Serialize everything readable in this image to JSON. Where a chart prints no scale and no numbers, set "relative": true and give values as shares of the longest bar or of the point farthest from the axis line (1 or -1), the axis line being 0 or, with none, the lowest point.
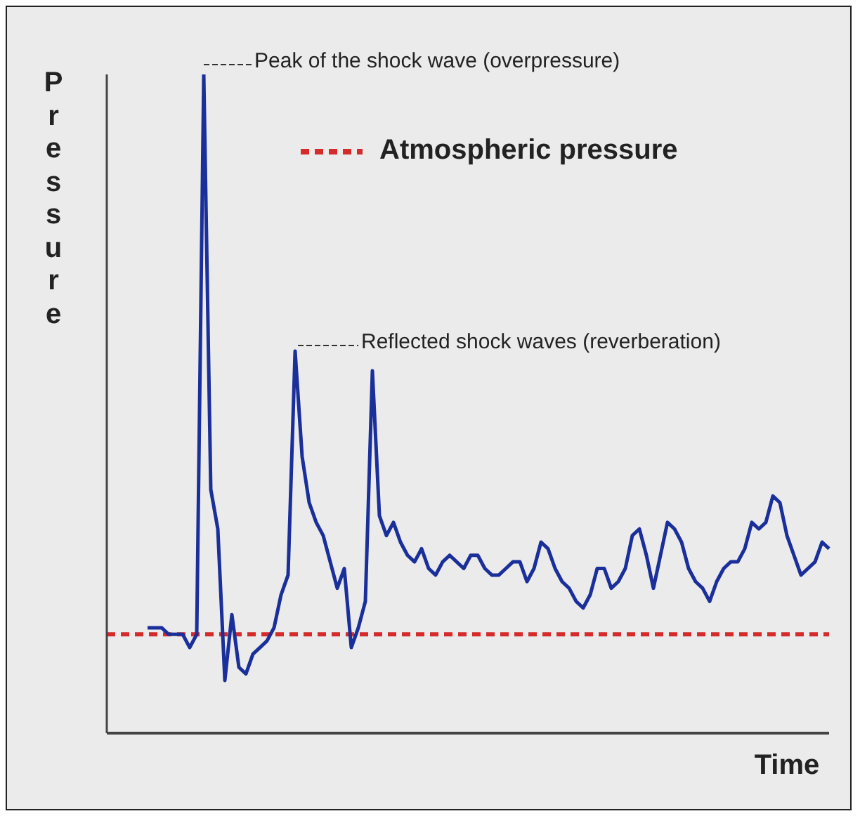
{
  "chart_data": {
    "type": "line",
    "relative": true,
    "ylabel": "Pressure",
    "xlabel": "Time",
    "marker": "none",
    "line_style": "solid",
    "categories": [
      null,
      null,
      null,
      null,
      null,
      null,
      null,
      null,
      null,
      null,
      null,
      null,
      null,
      null,
      null,
      null,
      null,
      null,
      null,
      null,
      null,
      null,
      null,
      null,
      null,
      null,
      null,
      null,
      null,
      null,
      null,
      null,
      null,
      null,
      null,
      null,
      null,
      null,
      null,
      null,
      null,
      null,
      null,
      null,
      null,
      null,
      null,
      null,
      null,
      null,
      null,
      null,
      null,
      null,
      null,
      null,
      null,
      null,
      null,
      null,
      null,
      null,
      null,
      null,
      null,
      null,
      null,
      null,
      null,
      null,
      null,
      null,
      null,
      null,
      null,
      null,
      null,
      null,
      null,
      null,
      null,
      null,
      null,
      null,
      null,
      null,
      null,
      null,
      null,
      null,
      null,
      null,
      null,
      null,
      null,
      null,
      null,
      null
    ],
    "series": [
      {
        "color": "#1a2f9a",
        "values": [
          0.16,
          0.16,
          0.16,
          0.15,
          0.15,
          0.15,
          0.13,
          0.15,
          1.0,
          0.37,
          0.31,
          0.08,
          0.18,
          0.1,
          0.09,
          0.12,
          0.13,
          0.14,
          0.16,
          0.21,
          0.24,
          0.58,
          0.42,
          0.35,
          0.32,
          0.3,
          0.26,
          0.22,
          0.25,
          0.13,
          0.16,
          0.2,
          0.55,
          0.33,
          0.3,
          0.32,
          0.29,
          0.27,
          0.26,
          0.28,
          0.25,
          0.24,
          0.26,
          0.27,
          0.26,
          0.25,
          0.27,
          0.27,
          0.25,
          0.24,
          0.24,
          0.25,
          0.26,
          0.26,
          0.23,
          0.25,
          0.29,
          0.28,
          0.25,
          0.23,
          0.22,
          0.2,
          0.19,
          0.21,
          0.25,
          0.25,
          0.22,
          0.23,
          0.25,
          0.3,
          0.31,
          0.27,
          0.22,
          0.27,
          0.32,
          0.31,
          0.29,
          0.25,
          0.23,
          0.22,
          0.2,
          0.23,
          0.25,
          0.26,
          0.26,
          0.28,
          0.32,
          0.31,
          0.32,
          0.36,
          0.35,
          0.3,
          0.27,
          0.24,
          0.25,
          0.26,
          0.29,
          0.28
        ]
      }
    ],
    "ref_lines": [
      {
        "axis": "y",
        "value": 0.15,
        "label": "Atmospheric pressure",
        "color": "#d62b2b",
        "line_style": "dashed"
      }
    ],
    "annotations": [
      "Peak of the shock wave (overpressure)",
      "Reflected shock waves (reverberation)"
    ]
  }
}
